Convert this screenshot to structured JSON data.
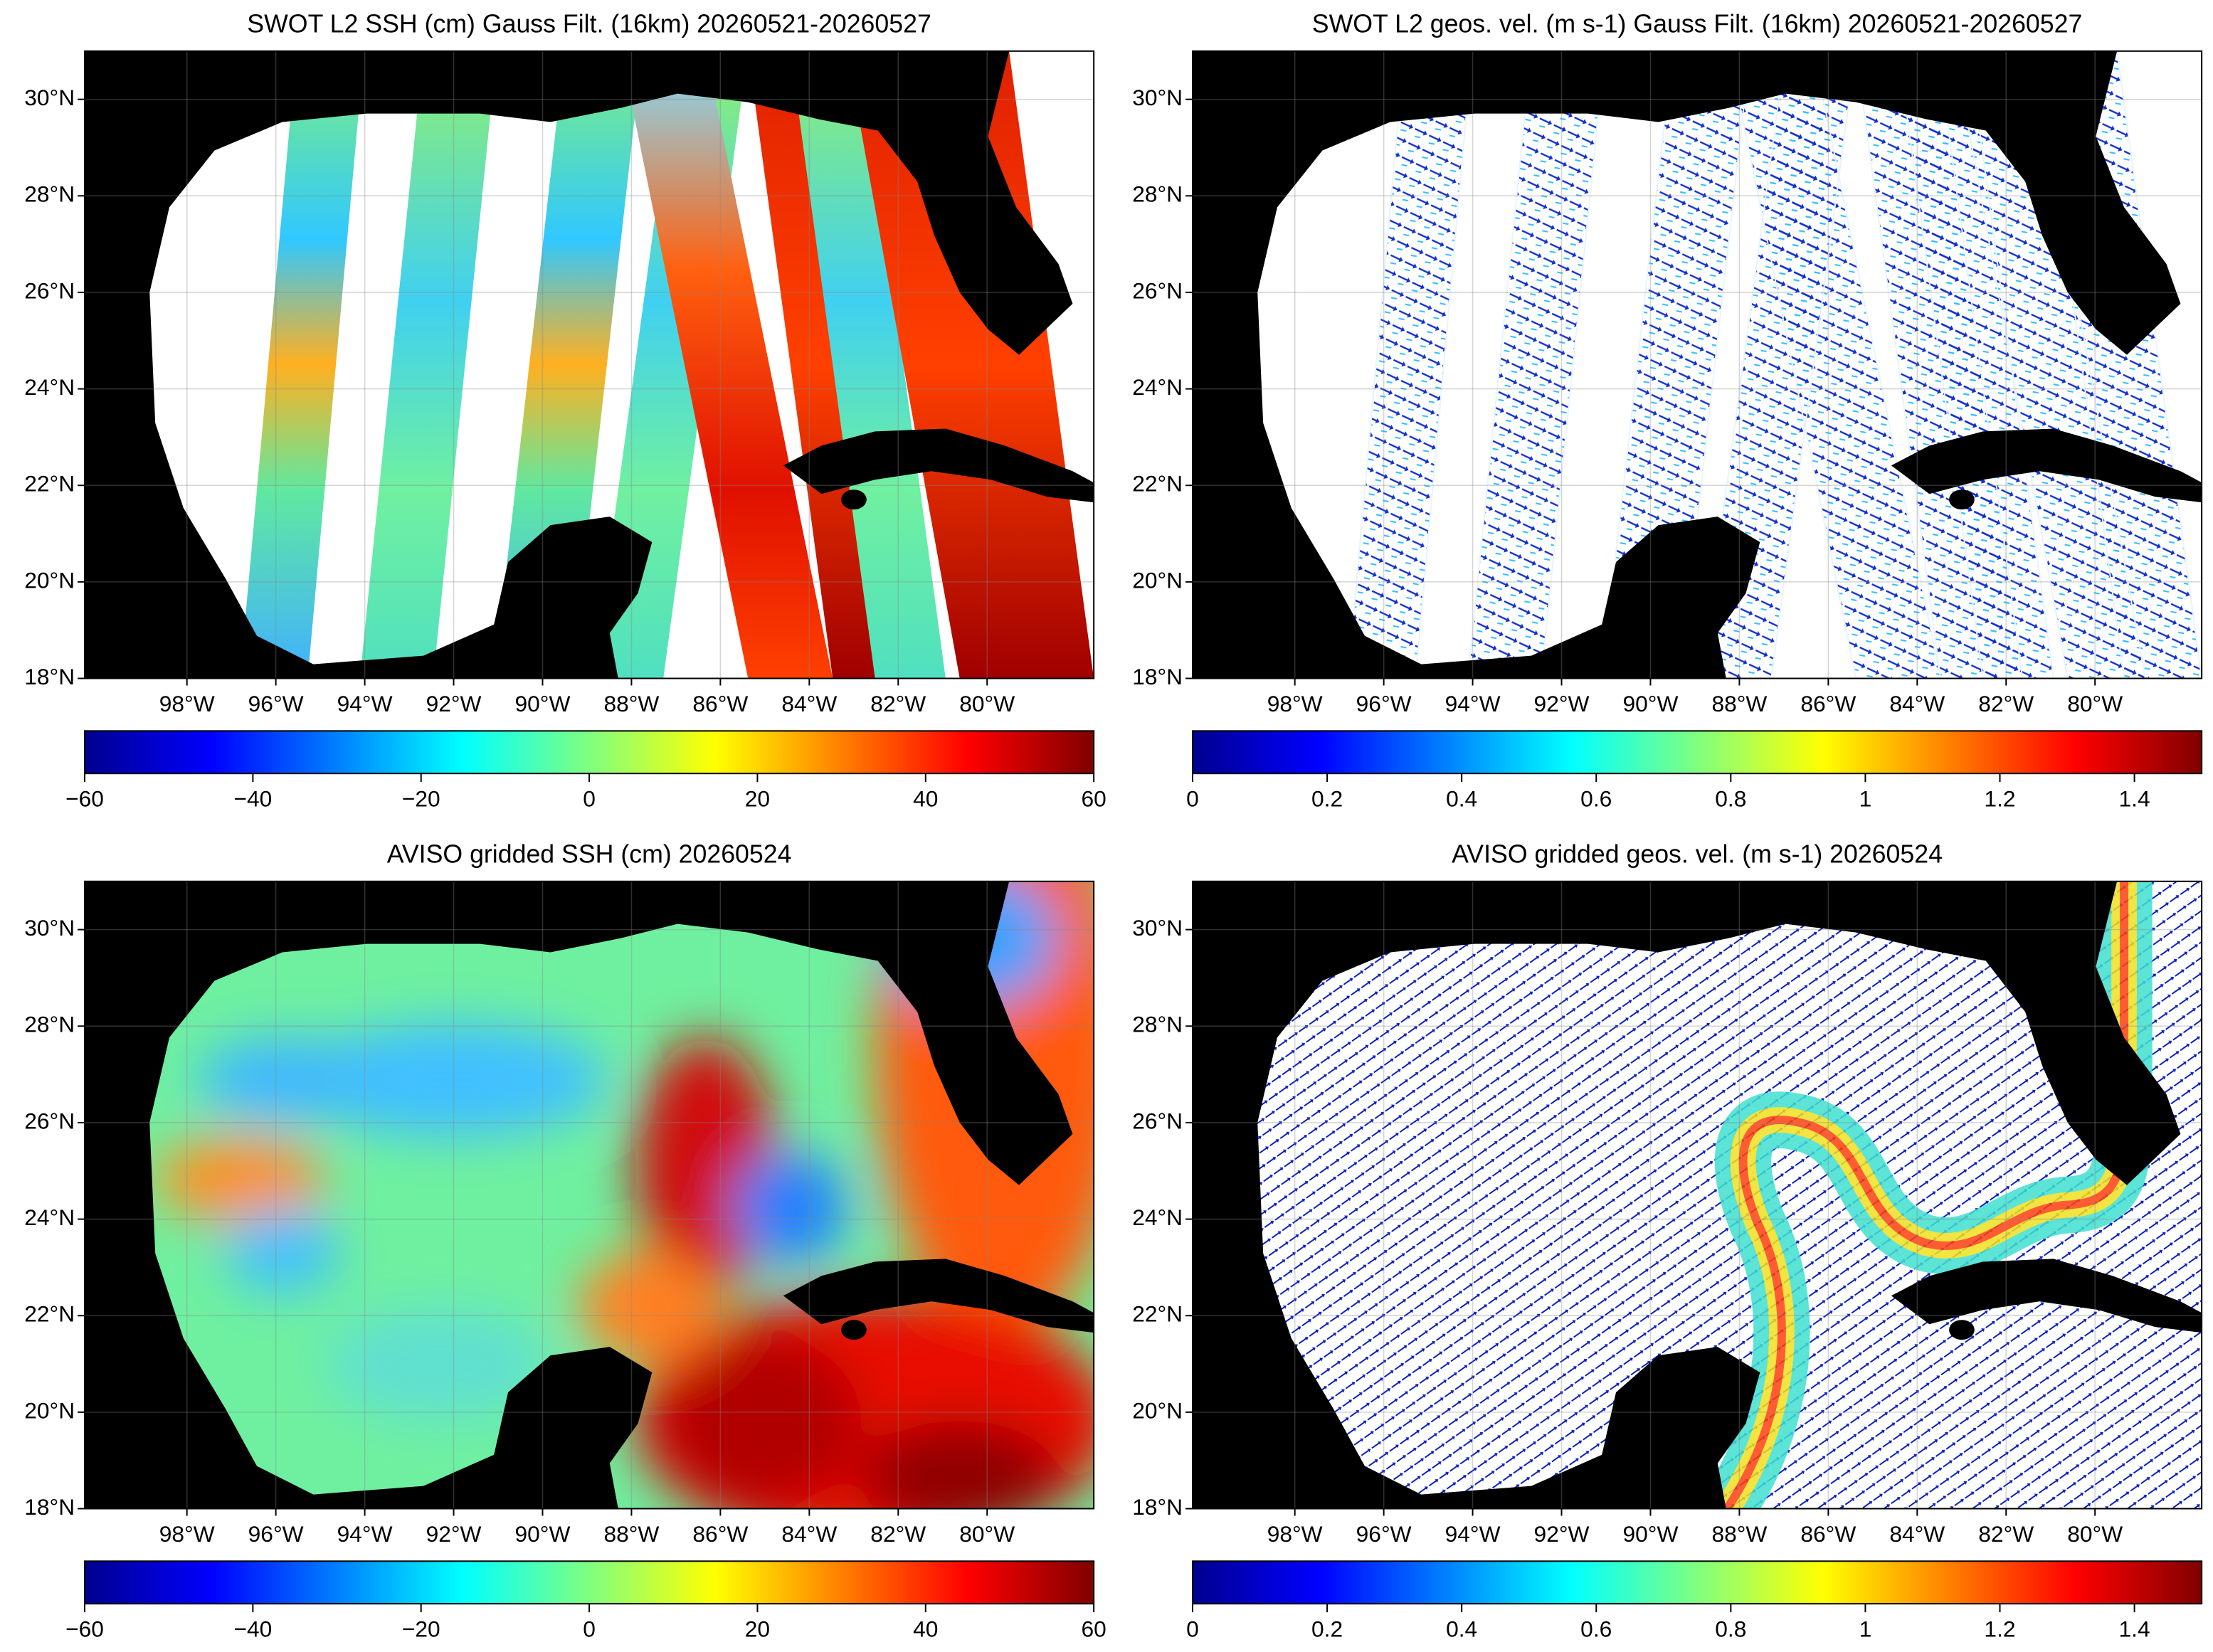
{
  "panels": [
    {
      "title": "SWOT L2 SSH (cm) Gauss Filt. (16km) 20260521-20260527",
      "colorbar": {
        "lim": [
          -60,
          60
        ],
        "ticks": [
          {
            "value": -60,
            "label": "−60"
          },
          {
            "value": -40,
            "label": "−40"
          },
          {
            "value": -20,
            "label": "−20"
          },
          0,
          20,
          40,
          60
        ]
      }
    },
    {
      "title": "SWOT L2 geos. vel. (m s-1) Gauss Filt. (16km) 20260521-20260527",
      "colorbar": {
        "lim": [
          0,
          1.5
        ],
        "ticks": [
          0,
          0.2,
          0.4,
          0.6,
          0.8,
          1,
          1.2,
          1.4
        ]
      }
    },
    {
      "title": "AVISO gridded SSH (cm) 20260524",
      "colorbar": {
        "lim": [
          -60,
          60
        ],
        "ticks": [
          {
            "value": -60,
            "label": "−60"
          },
          {
            "value": -40,
            "label": "−40"
          },
          {
            "value": -20,
            "label": "−20"
          },
          0,
          20,
          40,
          60
        ]
      }
    },
    {
      "title": "AVISO gridded geos. vel. (m s-1)  20260524",
      "colorbar": {
        "lim": [
          0,
          1.5
        ],
        "ticks": [
          0,
          0.2,
          0.4,
          0.6,
          0.8,
          1,
          1.2,
          1.4
        ]
      }
    }
  ],
  "axes": {
    "xlim": [
      -100.3,
      -77.6
    ],
    "ylim": [
      18,
      31
    ],
    "xticks": [
      {
        "value": -98,
        "label": "98°W"
      },
      {
        "value": -96,
        "label": "96°W"
      },
      {
        "value": -94,
        "label": "94°W"
      },
      {
        "value": -92,
        "label": "92°W"
      },
      {
        "value": -90,
        "label": "90°W"
      },
      {
        "value": -88,
        "label": "88°W"
      },
      {
        "value": -86,
        "label": "86°W"
      },
      {
        "value": -84,
        "label": "84°W"
      },
      {
        "value": -82,
        "label": "82°W"
      },
      {
        "value": -80,
        "label": "80°W"
      }
    ],
    "yticks": [
      {
        "value": 18,
        "label": "18°N"
      },
      {
        "value": 20,
        "label": "20°N"
      },
      {
        "value": 22,
        "label": "22°N"
      },
      {
        "value": 24,
        "label": "24°N"
      },
      {
        "value": 26,
        "label": "26°N"
      },
      {
        "value": 28,
        "label": "28°N"
      },
      {
        "value": 30,
        "label": "30°N"
      }
    ]
  }
}
